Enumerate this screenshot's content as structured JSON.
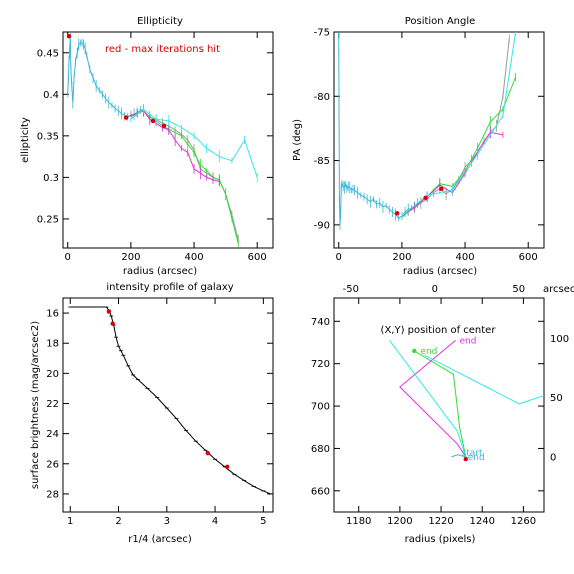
{
  "chart_data": [
    {
      "type": "line",
      "title": "Ellipticity",
      "xlabel": "radius (arcsec)",
      "ylabel": "ellipticity",
      "xlim": [
        -15,
        650
      ],
      "ylim": [
        0.215,
        0.475
      ],
      "xticks": [
        0,
        200,
        400,
        600
      ],
      "yticks": [
        0.25,
        0.3,
        0.35,
        0.4,
        0.45
      ],
      "annotations": [
        {
          "text": "red - max iterations hit",
          "color": "#dd0000"
        }
      ],
      "series": [
        {
          "color": "#3bb6d6",
          "x": [
            0,
            2,
            4,
            6,
            8,
            10,
            13,
            16,
            20,
            25,
            30,
            35,
            40,
            45,
            50,
            55,
            60,
            70,
            80,
            90,
            100,
            110,
            120,
            130,
            140,
            150,
            160,
            170,
            180,
            190,
            200,
            210,
            220,
            230,
            240
          ],
          "y": [
            0.4,
            0.42,
            0.44,
            0.45,
            0.47,
            0.43,
            0.41,
            0.39,
            0.42,
            0.44,
            0.45,
            0.46,
            0.462,
            0.462,
            0.46,
            0.455,
            0.447,
            0.43,
            0.42,
            0.41,
            0.405,
            0.4,
            0.395,
            0.39,
            0.387,
            0.383,
            0.38,
            0.377,
            0.375,
            0.373,
            0.374,
            0.376,
            0.378,
            0.381,
            0.382
          ]
        },
        {
          "color": "#999999",
          "x": [
            180,
            200,
            220,
            240,
            260,
            280,
            300,
            320,
            340,
            360,
            380,
            400,
            420,
            440,
            460,
            480,
            500,
            520,
            540
          ],
          "y": [
            0.372,
            0.375,
            0.378,
            0.38,
            0.372,
            0.37,
            0.365,
            0.362,
            0.357,
            0.352,
            0.345,
            0.333,
            0.31,
            0.305,
            0.3,
            0.297,
            0.28,
            0.255,
            0.225
          ]
        },
        {
          "color": "#33dd33",
          "x": [
            200,
            220,
            240,
            260,
            280,
            300,
            320,
            340,
            360,
            380,
            400,
            420,
            440,
            460,
            480,
            500,
            520,
            540
          ],
          "y": [
            0.373,
            0.378,
            0.38,
            0.373,
            0.368,
            0.362,
            0.358,
            0.354,
            0.35,
            0.34,
            0.33,
            0.315,
            0.308,
            0.3,
            0.297,
            0.28,
            0.25,
            0.22
          ]
        },
        {
          "color": "#dd33dd",
          "x": [
            200,
            220,
            240,
            260,
            280,
            300,
            320,
            340,
            360,
            380,
            400,
            420,
            440,
            460,
            480
          ],
          "y": [
            0.373,
            0.377,
            0.38,
            0.37,
            0.365,
            0.36,
            0.357,
            0.345,
            0.335,
            0.33,
            0.31,
            0.305,
            0.3,
            0.297,
            0.295
          ]
        },
        {
          "color": "#33e8e8",
          "x": [
            200,
            240,
            280,
            320,
            360,
            400,
            440,
            480,
            520,
            560,
            600
          ],
          "y": [
            0.37,
            0.382,
            0.37,
            0.368,
            0.36,
            0.35,
            0.335,
            0.325,
            0.32,
            0.345,
            0.3
          ]
        }
      ],
      "red_points": [
        {
          "x": 4,
          "y": 0.47
        },
        {
          "x": 185,
          "y": 0.372
        },
        {
          "x": 270,
          "y": 0.368
        },
        {
          "x": 305,
          "y": 0.362
        }
      ]
    },
    {
      "type": "line",
      "title": "Position Angle",
      "xlabel": "radius (arcsec)",
      "ylabel": "PA (deg)",
      "xlim": [
        -15,
        650
      ],
      "ylim": [
        -91.8,
        -75
      ],
      "xticks": [
        0,
        200,
        400,
        600
      ],
      "yticks": [
        -90,
        -85,
        -80,
        -75
      ],
      "series": [
        {
          "color": "#3bb6d6",
          "x": [
            0,
            2,
            4,
            6,
            8,
            10,
            14,
            18,
            22,
            26,
            30,
            35,
            40,
            45,
            50,
            60,
            70,
            80,
            90,
            100,
            110,
            120,
            130,
            140,
            150,
            160,
            170,
            180,
            190,
            200,
            210,
            220,
            230,
            240,
            250
          ],
          "y": [
            -75,
            -88,
            -90,
            -89,
            -87,
            -86.8,
            -87,
            -87.1,
            -86.8,
            -87.2,
            -87,
            -87.1,
            -87.3,
            -87.2,
            -87.3,
            -87.5,
            -87.7,
            -87.8,
            -88.0,
            -88.2,
            -88.0,
            -88.4,
            -88.3,
            -88.6,
            -88.5,
            -88.8,
            -89.0,
            -89.2,
            -89.5,
            -89.3,
            -89.0,
            -88.8,
            -88.7,
            -88.5,
            -88.3
          ]
        },
        {
          "color": "#999999",
          "x": [
            200,
            220,
            240,
            260,
            280,
            300,
            320,
            340,
            360,
            380,
            400,
            420,
            440,
            460,
            480,
            500,
            520,
            540
          ],
          "y": [
            -89.4,
            -89.0,
            -88.7,
            -88.3,
            -88.0,
            -87.5,
            -87.2,
            -87.6,
            -87.2,
            -86.5,
            -85.5,
            -85,
            -84.3,
            -83.5,
            -82.8,
            -82.3,
            -80.0,
            -75.5
          ]
        },
        {
          "color": "#33dd33",
          "x": [
            200,
            240,
            280,
            320,
            360,
            400,
            440,
            480,
            520,
            560
          ],
          "y": [
            -89.4,
            -88.6,
            -87.8,
            -86.8,
            -87.0,
            -85.8,
            -84.0,
            -82.0,
            -81.0,
            -78.5
          ]
        },
        {
          "color": "#dd33dd",
          "x": [
            200,
            240,
            280,
            320,
            360,
            400,
            440,
            480,
            520
          ],
          "y": [
            -89.3,
            -88.6,
            -87.8,
            -86.9,
            -87.5,
            -86.0,
            -84.3,
            -82.8,
            -83.0
          ]
        },
        {
          "color": "#33e8e8",
          "x": [
            200,
            280,
            360,
            440,
            520,
            560
          ],
          "y": [
            -89.3,
            -87.7,
            -87.3,
            -84.5,
            -81.5,
            -75.0
          ]
        }
      ],
      "red_points": [
        {
          "x": 185,
          "y": -89.1
        },
        {
          "x": 275,
          "y": -87.9
        },
        {
          "x": 325,
          "y": -87.2
        }
      ]
    },
    {
      "type": "line",
      "title": "intensity profile of galaxy",
      "xlabel": "r1/4 (arcsec)",
      "ylabel": "surface brightness (mag/arcsec2)",
      "xlim": [
        0.85,
        5.2
      ],
      "ylim": [
        29.2,
        15.0
      ],
      "y_inverted": true,
      "xticks": [
        1,
        2,
        3,
        4,
        5
      ],
      "yticks": [
        16,
        18,
        20,
        22,
        24,
        26,
        28
      ],
      "series": [
        {
          "color": "#000000",
          "x": [
            1.0,
            1.2,
            1.4,
            1.6,
            1.7,
            1.75,
            1.8,
            1.85,
            1.9,
            1.95,
            2.0,
            2.05,
            2.1,
            2.2,
            2.3,
            2.4,
            2.6,
            2.8,
            3.0,
            3.2,
            3.4,
            3.6,
            3.8,
            4.0,
            4.2,
            4.4,
            4.6,
            4.8,
            5.0,
            5.15
          ],
          "y": [
            15.6,
            15.6,
            15.6,
            15.6,
            15.6,
            15.6,
            15.8,
            16.2,
            16.8,
            17.6,
            18.2,
            18.5,
            18.8,
            19.5,
            20.1,
            20.4,
            21.0,
            21.6,
            22.3,
            23.0,
            23.8,
            24.5,
            25.1,
            25.7,
            26.2,
            26.7,
            27.1,
            27.5,
            27.8,
            28.0
          ]
        }
      ],
      "red_points": [
        {
          "x": 1.8,
          "y": 15.9
        },
        {
          "x": 1.88,
          "y": 16.7
        },
        {
          "x": 3.85,
          "y": 25.3
        },
        {
          "x": 4.25,
          "y": 26.2
        }
      ]
    },
    {
      "type": "line",
      "title": "(X,Y) position of center",
      "xlabel": "radius (pixels)",
      "xlim": [
        1168,
        1270
      ],
      "ylim": [
        650,
        751
      ],
      "xticks": [
        1180,
        1200,
        1220,
        1240,
        1260
      ],
      "yticks": [
        660,
        680,
        700,
        720,
        740
      ],
      "top_xticks": [
        -50,
        0,
        50
      ],
      "right_yticks": [
        0,
        50,
        100
      ],
      "right_axis_label": "arcsec",
      "series": [
        {
          "color": "#33dd33",
          "x": [
            1207,
            1226,
            1229,
            1232
          ],
          "y": [
            726,
            715,
            690,
            676
          ]
        },
        {
          "color": "#dd33dd",
          "x": [
            1227,
            1200,
            1228,
            1232
          ],
          "y": [
            731,
            709,
            682,
            676
          ]
        },
        {
          "color": "#33e8e8",
          "x": [
            1195,
            1228,
            1232
          ],
          "y": [
            731,
            688,
            676
          ]
        },
        {
          "color": "#33e8e8",
          "x": [
            1212,
            1258,
            1270
          ],
          "y": [
            724,
            701,
            705
          ]
        },
        {
          "color": "#3bb6d6",
          "x": [
            1225,
            1228,
            1232
          ],
          "y": [
            676,
            677,
            676
          ]
        }
      ],
      "point_labels": [
        {
          "text": "end",
          "x": 1209,
          "y": 726,
          "color": "#33dd33"
        },
        {
          "text": "end",
          "x": 1228,
          "y": 731,
          "color": "#dd33dd"
        },
        {
          "text": "end",
          "x": 1232,
          "y": 676,
          "color": "#3bb6d6"
        },
        {
          "text": "start",
          "x": 1229,
          "y": 678,
          "color": "#3bb6d6"
        }
      ],
      "red_points": [
        {
          "x": 1232,
          "y": 675
        }
      ],
      "green_points": [
        {
          "x": 1207,
          "y": 726
        }
      ]
    }
  ]
}
